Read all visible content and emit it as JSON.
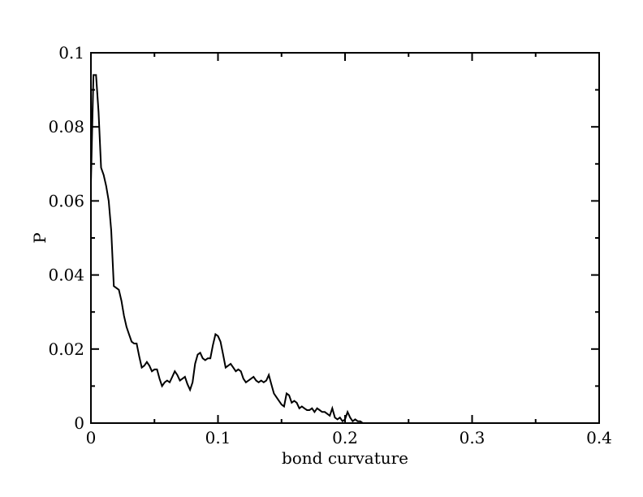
{
  "chart_data": {
    "type": "line",
    "title": "",
    "xlabel": "bond curvature",
    "ylabel": "P",
    "xlim": [
      0,
      0.4
    ],
    "ylim": [
      0,
      0.1
    ],
    "x_ticks": [
      "0",
      "0.1",
      "0.2",
      "0.3",
      "0.4"
    ],
    "y_ticks": [
      "0",
      "0.02",
      "0.04",
      "0.06",
      "0.08",
      "0.1"
    ],
    "grid": false,
    "legend": "none",
    "line_color": "#000000",
    "series": [
      {
        "x": [
          0.0,
          0.002,
          0.004,
          0.006,
          0.008,
          0.01,
          0.012,
          0.014,
          0.016,
          0.018,
          0.02,
          0.022,
          0.024,
          0.026,
          0.028,
          0.03,
          0.032,
          0.034,
          0.036,
          0.038,
          0.04,
          0.042,
          0.044,
          0.046,
          0.048,
          0.05,
          0.052,
          0.054,
          0.056,
          0.058,
          0.06,
          0.062,
          0.064,
          0.066,
          0.068,
          0.07,
          0.072,
          0.074,
          0.076,
          0.078,
          0.08,
          0.082,
          0.084,
          0.086,
          0.088,
          0.09,
          0.092,
          0.094,
          0.096,
          0.098,
          0.1,
          0.102,
          0.104,
          0.106,
          0.108,
          0.11,
          0.112,
          0.114,
          0.116,
          0.118,
          0.12,
          0.122,
          0.124,
          0.126,
          0.128,
          0.13,
          0.132,
          0.134,
          0.136,
          0.138,
          0.14,
          0.142,
          0.144,
          0.146,
          0.148,
          0.15,
          0.152,
          0.154,
          0.156,
          0.158,
          0.16,
          0.162,
          0.164,
          0.166,
          0.168,
          0.17,
          0.172,
          0.174,
          0.176,
          0.178,
          0.18,
          0.182,
          0.184,
          0.186,
          0.188,
          0.19,
          0.192,
          0.194,
          0.196,
          0.198,
          0.2,
          0.202,
          0.204,
          0.206,
          0.208,
          0.21,
          0.212,
          0.214,
          0.216,
          0.218,
          0.22,
          0.222,
          0.224,
          0.226,
          0.228,
          0.23,
          0.232,
          0.234,
          0.236,
          0.238,
          0.24,
          0.256,
          0.26,
          0.264,
          0.268,
          0.272,
          0.276,
          0.28,
          0.284,
          0.288,
          0.292,
          0.296,
          0.3,
          0.326,
          0.33,
          0.334,
          0.338,
          0.342,
          0.346,
          0.372,
          0.376,
          0.38,
          0.384,
          0.388,
          0.392
        ],
        "y": [
          0.065,
          0.094,
          0.094,
          0.084,
          0.069,
          0.067,
          0.064,
          0.06,
          0.052,
          0.037,
          0.0365,
          0.036,
          0.033,
          0.029,
          0.026,
          0.024,
          0.022,
          0.0215,
          0.0215,
          0.018,
          0.015,
          0.0155,
          0.0165,
          0.0155,
          0.014,
          0.0145,
          0.0145,
          0.012,
          0.01,
          0.011,
          0.0115,
          0.011,
          0.0125,
          0.014,
          0.013,
          0.0115,
          0.012,
          0.0125,
          0.0105,
          0.009,
          0.011,
          0.016,
          0.0185,
          0.019,
          0.0175,
          0.017,
          0.0175,
          0.0175,
          0.021,
          0.024,
          0.0235,
          0.022,
          0.0185,
          0.015,
          0.0155,
          0.016,
          0.015,
          0.014,
          0.0145,
          0.014,
          0.012,
          0.011,
          0.0115,
          0.012,
          0.0125,
          0.0115,
          0.011,
          0.0115,
          0.011,
          0.0115,
          0.013,
          0.0105,
          0.008,
          0.007,
          0.006,
          0.005,
          0.0045,
          0.008,
          0.0075,
          0.0055,
          0.006,
          0.0055,
          0.004,
          0.0045,
          0.004,
          0.0035,
          0.0035,
          0.004,
          0.003,
          0.004,
          0.0035,
          0.003,
          0.003,
          0.0025,
          0.002,
          0.004,
          0.0015,
          0.001,
          0.0015,
          0.0005,
          0.001,
          0.003,
          0.0015,
          0.0005,
          0.001,
          0.0005,
          0.0005,
          0.0,
          0.0,
          0.0,
          0.0,
          0.0,
          0.0,
          0.0,
          0.0,
          0.0,
          0.0,
          0.0,
          0.0,
          0.0,
          0.0,
          0.0,
          0.0,
          0.0,
          0.0,
          0.0,
          0.0,
          0.0,
          0.0,
          0.0,
          0.0,
          0.0,
          0.0,
          0.0,
          0.0,
          0.0,
          0.0,
          0.0,
          0.0,
          0.0,
          0.0,
          0.0,
          0.0,
          0.0,
          0.0
        ]
      }
    ]
  }
}
